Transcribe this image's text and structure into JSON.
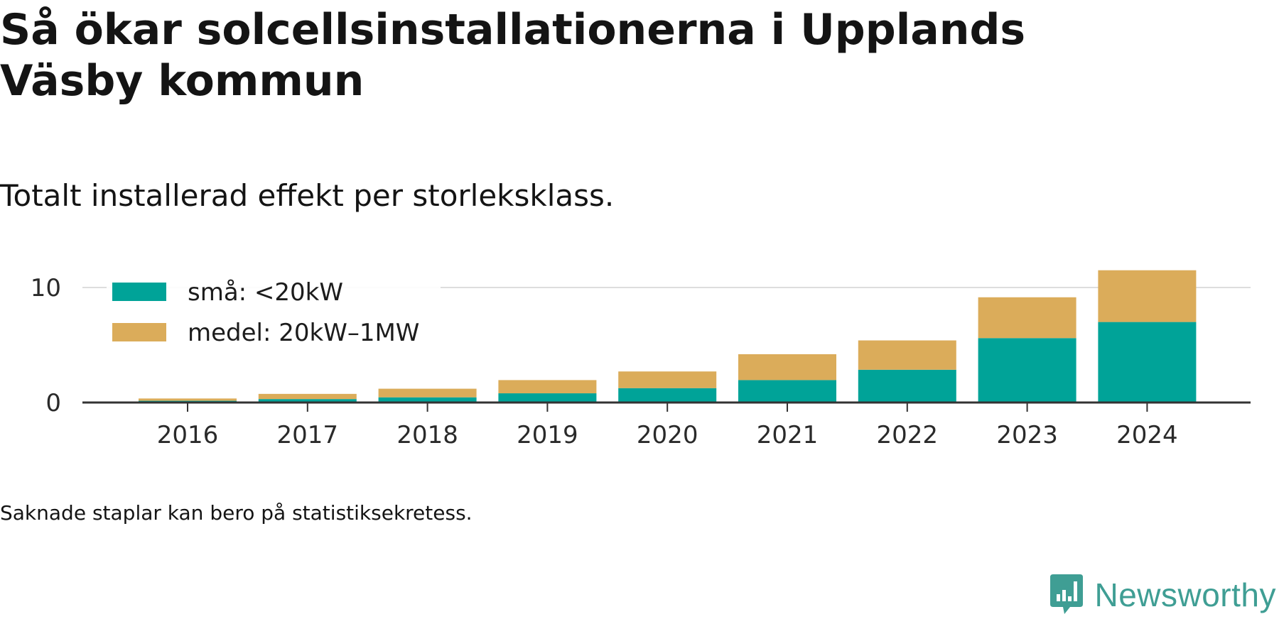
{
  "title": "Så ökar solcellsinstallationerna i Upplands Väsby kommun",
  "subtitle": "Totalt installerad effekt per storleksklass.",
  "footnote": "Saknade staplar kan bero på statistiksekretess.",
  "brand": {
    "name": "Newsworthy",
    "icon": "newsworthy-logo-icon",
    "color": "#3f9e94"
  },
  "chart_data": {
    "type": "bar",
    "stacked": true,
    "categories": [
      "2016",
      "2017",
      "2018",
      "2019",
      "2020",
      "2021",
      "2022",
      "2023",
      "2024"
    ],
    "series": [
      {
        "name": "små: <20kW",
        "color": "#00a398",
        "values": [
          0.15,
          0.3,
          0.45,
          0.8,
          1.25,
          1.95,
          2.85,
          5.6,
          7.0
        ]
      },
      {
        "name": "medel: 20kW–1MW",
        "color": "#dbac5a",
        "values": [
          0.2,
          0.45,
          0.75,
          1.15,
          1.45,
          2.25,
          2.55,
          3.55,
          4.5
        ]
      }
    ],
    "yticks": [
      0,
      10
    ],
    "ylim": [
      0,
      12
    ],
    "grid": "horizontal",
    "legend": "top-left",
    "xlabel": "",
    "ylabel": ""
  }
}
